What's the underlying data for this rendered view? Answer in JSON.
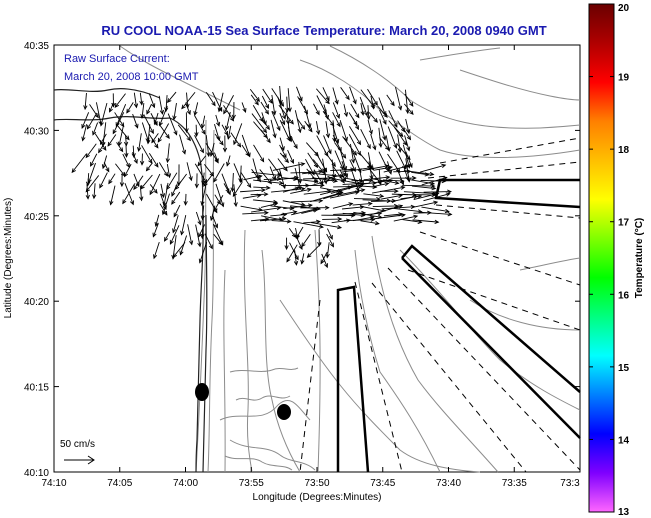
{
  "title": "RU COOL  NOAA-15  Sea Surface Temperature:  March 20, 2008 0940 GMT",
  "current_label": {
    "line1": "Raw Surface Current:",
    "line2": "March 20, 2008 10:00 GMT"
  },
  "scale": {
    "label": "50 cm/s"
  },
  "axes": {
    "xlabel": "Longitude (Degrees:Minutes)",
    "ylabel": "Latitude (Degrees:Minutes)",
    "xticks": [
      "74:10",
      "74:05",
      "74:00",
      "73:55",
      "73:50",
      "73:45",
      "73:40",
      "73:35",
      "73:3"
    ],
    "yticks": [
      "40:35",
      "40:30",
      "40:25",
      "40:20",
      "40:15",
      "40:10"
    ]
  },
  "colorbar": {
    "label": "Temperature (°C)",
    "ticks": [
      "20",
      "19",
      "18",
      "17",
      "16",
      "15",
      "14",
      "13"
    ],
    "min": 13,
    "max": 20,
    "colors": [
      "#ff66ff",
      "#7f00ff",
      "#0000ff",
      "#0080ff",
      "#00ffff",
      "#00ff80",
      "#00ff00",
      "#80ff00",
      "#ffff00",
      "#ffbf00",
      "#ff8000",
      "#ff0000",
      "#b00000",
      "#6a0000"
    ]
  }
}
